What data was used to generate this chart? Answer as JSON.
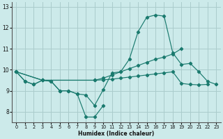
{
  "xlabel": "Humidex (Indice chaleur)",
  "background_color": "#cceaea",
  "grid_color": "#aacccc",
  "line_color": "#1a7a6e",
  "xlim": [
    -0.5,
    23.5
  ],
  "ylim": [
    7.5,
    13.2
  ],
  "yticks": [
    8,
    9,
    10,
    11,
    12,
    13
  ],
  "xticks": [
    0,
    1,
    2,
    3,
    4,
    5,
    6,
    7,
    8,
    9,
    10,
    11,
    12,
    13,
    14,
    15,
    16,
    17,
    18,
    19,
    20,
    21,
    22,
    23
  ],
  "series": [
    {
      "x": [
        0,
        1,
        2,
        3,
        4,
        5,
        6,
        7,
        8,
        9,
        10,
        11,
        12,
        13,
        14,
        15,
        16,
        17,
        18,
        19,
        20,
        21,
        22,
        23
      ],
      "y": [
        9.9,
        9.45,
        9.3,
        9.5,
        9.45,
        9.0,
        9.0,
        8.85,
        8.8,
        8.3,
        9.05,
        9.85,
        9.9,
        10.5,
        11.8,
        12.5,
        12.6,
        12.55,
        10.8,
        10.25,
        10.3,
        9.9,
        9.45,
        9.3
      ]
    },
    {
      "x": [
        0,
        1,
        2,
        3,
        4,
        5,
        6,
        7,
        8,
        9,
        10
      ],
      "y": [
        9.9,
        9.45,
        9.3,
        9.5,
        9.45,
        9.0,
        9.0,
        8.85,
        7.75,
        7.75,
        8.3
      ]
    },
    {
      "x": [
        0,
        3,
        9,
        10,
        11,
        12,
        13,
        14,
        15,
        16,
        17,
        18,
        19
      ],
      "y": [
        9.9,
        9.5,
        9.5,
        9.6,
        9.75,
        9.9,
        10.05,
        10.2,
        10.35,
        10.5,
        10.6,
        10.75,
        11.0
      ]
    },
    {
      "x": [
        0,
        3,
        9,
        10,
        11,
        12,
        13,
        14,
        15,
        16,
        17,
        18,
        19,
        20,
        21,
        22
      ],
      "y": [
        9.9,
        9.5,
        9.5,
        9.52,
        9.55,
        9.6,
        9.65,
        9.7,
        9.75,
        9.8,
        9.85,
        9.9,
        9.35,
        9.3,
        9.28,
        9.3
      ]
    }
  ]
}
